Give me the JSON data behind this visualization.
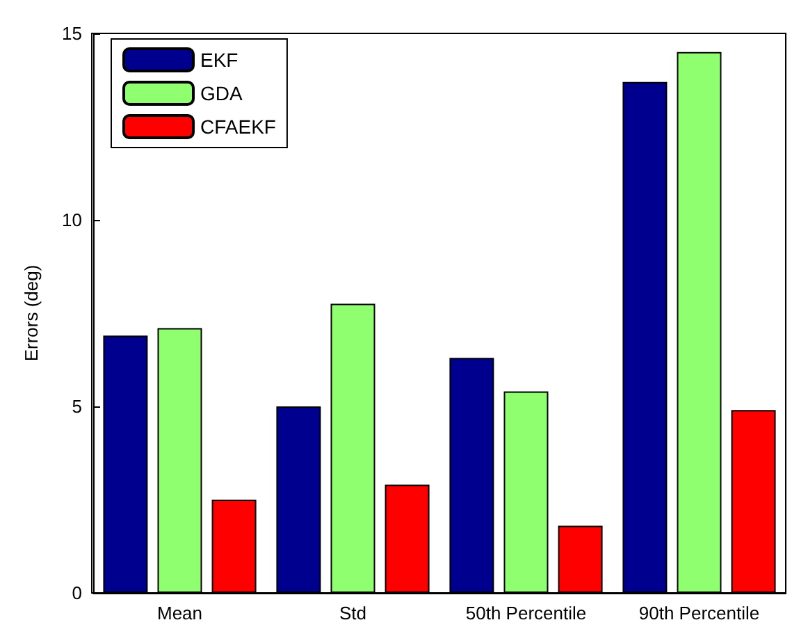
{
  "chart_data": {
    "type": "bar",
    "ylabel": "Errors (deg)",
    "categories": [
      "Mean",
      "Std",
      "50th Percentile",
      "90th Percentile"
    ],
    "series": [
      {
        "name": "EKF",
        "color": "#00008f",
        "values": [
          6.9,
          5.0,
          6.3,
          13.7
        ]
      },
      {
        "name": "GDA",
        "color": "#8fff70",
        "values": [
          7.1,
          7.75,
          5.4,
          14.5
        ]
      },
      {
        "name": "CFAEKF",
        "color": "#ff0000",
        "values": [
          2.5,
          2.9,
          1.8,
          4.9
        ]
      }
    ],
    "ylim": [
      0,
      15
    ],
    "yticks": [
      0,
      5,
      10,
      15
    ],
    "grid": false,
    "legend": "top left"
  }
}
